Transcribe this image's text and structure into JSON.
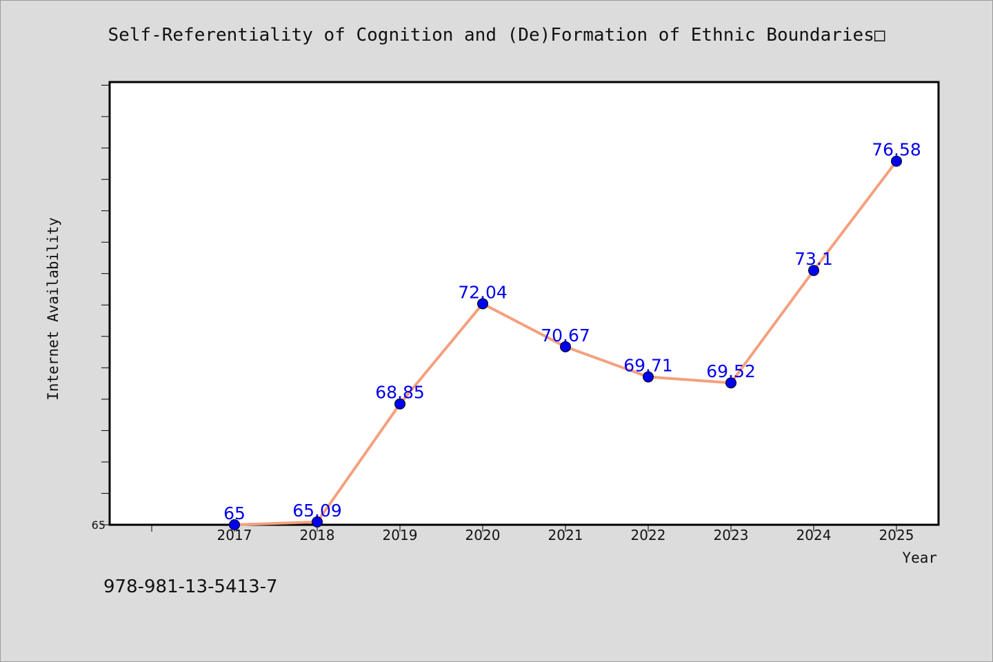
{
  "chart_data": {
    "type": "line",
    "title": "Self-Referentiality of Cognition and (De)Formation of Ethnic Boundaries□",
    "xlabel": "Year",
    "ylabel": "Internet Availability",
    "categories": [
      "2017",
      "2018",
      "2019",
      "2020",
      "2021",
      "2022",
      "2023",
      "2024",
      "2025"
    ],
    "series": [
      {
        "values": [
          65,
          65.09,
          68.85,
          72.04,
          70.67,
          69.71,
          69.52,
          73.1,
          76.58
        ],
        "labels": [
          "65",
          "65.09",
          "68.85",
          "72.04",
          "70.67",
          "69.71",
          "69.52",
          "73.1",
          "76.58"
        ]
      }
    ],
    "ylim": [
      65,
      79.1
    ],
    "y_tick_labels": [
      "65"
    ],
    "grid": false,
    "legend": "none",
    "line_color": "#f4a07e",
    "marker_color": "#0000ee"
  },
  "footer": {
    "isbn": "978-981-13-5413-7"
  }
}
